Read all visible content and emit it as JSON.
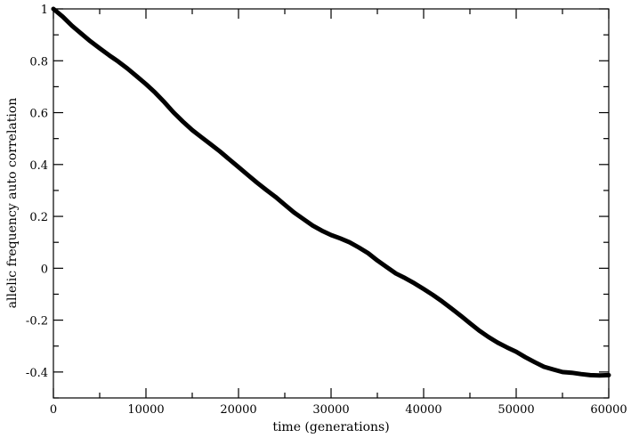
{
  "chart_data": {
    "type": "line",
    "title": "",
    "xlabel": "time (generations)",
    "ylabel": "allelic frequency auto correlation",
    "xlim": [
      0,
      60000
    ],
    "ylim": [
      -0.5,
      1
    ],
    "x_ticks": [
      0,
      10000,
      20000,
      30000,
      40000,
      50000,
      60000
    ],
    "x_tick_labels": [
      "0",
      "10000",
      "20000",
      "30000",
      "40000",
      "50000",
      "60000"
    ],
    "y_ticks": [
      -0.4,
      -0.2,
      0,
      0.2,
      0.4,
      0.6,
      0.8,
      1
    ],
    "y_tick_labels": [
      "-0.4",
      "-0.2",
      "0",
      "0.2",
      "0.4",
      "0.6",
      "0.8",
      "1"
    ],
    "grid": false,
    "line_color": "#000000",
    "series": [
      {
        "x": [
          0,
          1000,
          2000,
          3000,
          4000,
          5000,
          6000,
          7000,
          8000,
          9000,
          10000,
          11000,
          12000,
          13000,
          14000,
          15000,
          16000,
          17000,
          18000,
          19000,
          20000,
          21000,
          22000,
          23000,
          24000,
          25000,
          26000,
          27000,
          28000,
          29000,
          30000,
          31000,
          32000,
          33000,
          34000,
          35000,
          36000,
          37000,
          38000,
          39000,
          40000,
          41000,
          42000,
          43000,
          44000,
          45000,
          46000,
          47000,
          48000,
          49000,
          50000,
          51000,
          52000,
          53000,
          54000,
          55000,
          56000,
          57000,
          58000,
          59000,
          60000
        ],
        "values": [
          1.0,
          0.97,
          0.935,
          0.905,
          0.875,
          0.848,
          0.822,
          0.797,
          0.77,
          0.74,
          0.71,
          0.677,
          0.64,
          0.6,
          0.565,
          0.533,
          0.505,
          0.478,
          0.45,
          0.42,
          0.39,
          0.36,
          0.33,
          0.302,
          0.275,
          0.245,
          0.215,
          0.19,
          0.165,
          0.145,
          0.128,
          0.115,
          0.1,
          0.08,
          0.058,
          0.03,
          0.005,
          -0.02,
          -0.038,
          -0.058,
          -0.08,
          -0.103,
          -0.128,
          -0.155,
          -0.183,
          -0.212,
          -0.24,
          -0.265,
          -0.287,
          -0.305,
          -0.322,
          -0.343,
          -0.362,
          -0.38,
          -0.39,
          -0.4,
          -0.403,
          -0.408,
          -0.412,
          -0.413,
          -0.412
        ]
      }
    ]
  }
}
